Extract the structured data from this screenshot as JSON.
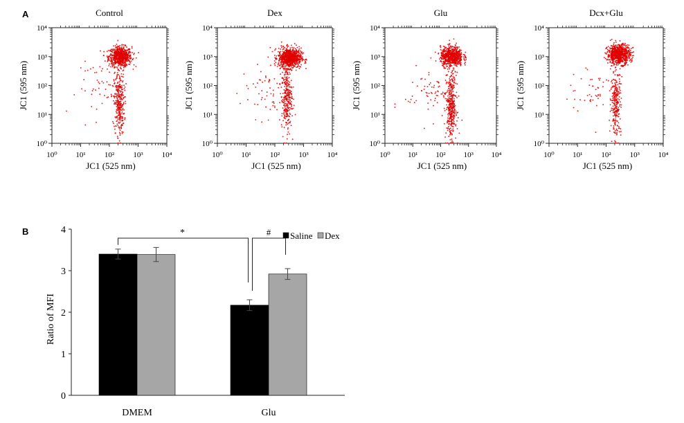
{
  "figure": {
    "panel_a_label": "A",
    "panel_b_label": "B"
  },
  "colors": {
    "dots": "#e00000",
    "saline": "#000000",
    "dex": "#a6a6a6",
    "axis": "#222222"
  },
  "chart_data": [
    {
      "type": "scatter",
      "title": "Control",
      "xlabel": "JC1 (525 nm)",
      "ylabel": "JC1 (595 nm)",
      "x_scale": "log",
      "y_scale": "log",
      "xlim": [
        1,
        10000
      ],
      "ylim": [
        1,
        10000
      ],
      "x_ticks": [
        "10⁰",
        "10¹",
        "10²",
        "10³",
        "10⁴"
      ],
      "y_ticks": [
        "10⁰",
        "10¹",
        "10²",
        "10³",
        "10⁴"
      ],
      "clusters": [
        {
          "x": 240,
          "y": 1000,
          "count": 700
        },
        {
          "x": 220,
          "y": 25,
          "count": 320
        },
        {
          "x": 60,
          "y": 80,
          "count": 50
        }
      ]
    },
    {
      "type": "scatter",
      "title": "Dex",
      "xlabel": "JC1 (525 nm)",
      "ylabel": "JC1 (595 nm)",
      "x_scale": "log",
      "y_scale": "log",
      "xlim": [
        1,
        10000
      ],
      "ylim": [
        1,
        10000
      ],
      "x_ticks": [
        "10⁰",
        "10¹",
        "10²",
        "10³",
        "10⁴"
      ],
      "y_ticks": [
        "10⁰",
        "10¹",
        "10²",
        "10³",
        "10⁴"
      ],
      "clusters": [
        {
          "x": 330,
          "y": 900,
          "count": 850
        },
        {
          "x": 260,
          "y": 35,
          "count": 280
        },
        {
          "x": 50,
          "y": 60,
          "count": 60
        }
      ]
    },
    {
      "type": "scatter",
      "title": "Glu",
      "xlabel": "JC1 (525 nm)",
      "ylabel": "JC1 (595 nm)",
      "x_scale": "log",
      "y_scale": "log",
      "xlim": [
        1,
        10000
      ],
      "ylim": [
        1,
        10000
      ],
      "x_ticks": [
        "10⁰",
        "10¹",
        "10²",
        "10³",
        "10⁴"
      ],
      "y_ticks": [
        "10⁰",
        "10¹",
        "10²",
        "10³",
        "10⁴"
      ],
      "clusters": [
        {
          "x": 250,
          "y": 1000,
          "count": 700
        },
        {
          "x": 240,
          "y": 20,
          "count": 380
        },
        {
          "x": 40,
          "y": 60,
          "count": 70
        }
      ]
    },
    {
      "type": "scatter",
      "title": "Dcx+Glu",
      "xlabel": "JC1 (525 nm)",
      "ylabel": "JC1 (595 nm)",
      "x_scale": "log",
      "y_scale": "log",
      "xlim": [
        1,
        10000
      ],
      "ylim": [
        1,
        10000
      ],
      "x_ticks": [
        "10⁰",
        "10¹",
        "10²",
        "10³",
        "10⁴"
      ],
      "y_ticks": [
        "10⁰",
        "10¹",
        "10²",
        "10³",
        "10⁴"
      ],
      "clusters": [
        {
          "x": 280,
          "y": 1200,
          "count": 750
        },
        {
          "x": 220,
          "y": 25,
          "count": 260
        },
        {
          "x": 40,
          "y": 80,
          "count": 50
        }
      ]
    },
    {
      "type": "bar",
      "ylabel": "Ratio of MFI",
      "ylim": [
        0,
        4
      ],
      "y_ticks": [
        0,
        1,
        2,
        3,
        4
      ],
      "categories": [
        "DMEM",
        "Glu"
      ],
      "series": [
        {
          "name": "Saline",
          "values": [
            3.4,
            2.17
          ],
          "errors": [
            0.12,
            0.13
          ]
        },
        {
          "name": "Dex",
          "values": [
            3.39,
            2.92
          ],
          "errors": [
            0.17,
            0.13
          ]
        }
      ],
      "legend": "top-right",
      "annotations": [
        {
          "text": "*",
          "between": "DMEM Saline vs Glu Saline"
        },
        {
          "text": "#",
          "between": "Glu Saline vs Glu Dex"
        }
      ]
    }
  ]
}
